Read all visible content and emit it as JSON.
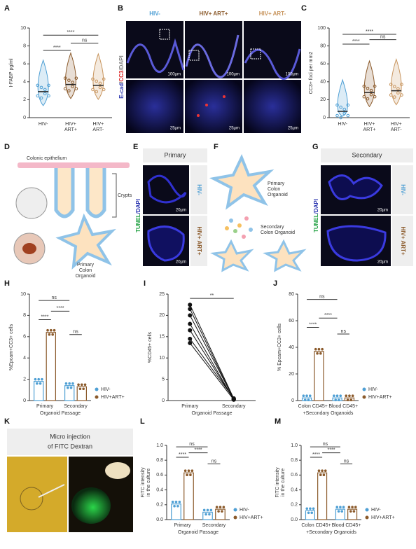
{
  "panel_letters": [
    "A",
    "B",
    "C",
    "D",
    "E",
    "F",
    "G",
    "H",
    "I",
    "J",
    "K",
    "L",
    "M"
  ],
  "A": {
    "type": "violin",
    "ylabel": "I-FABP pg/ml",
    "categories": [
      [
        "HIV-"
      ],
      [
        "HIV+",
        "ART+"
      ],
      [
        "HIV+",
        "ART-"
      ]
    ],
    "colors": [
      "#4e9fd4",
      "#8b5a2b",
      "#c8955e"
    ],
    "values": [
      2.9,
      3.7,
      3.6
    ],
    "ylim": [
      0,
      10
    ],
    "yticks": [
      0,
      2,
      4,
      6,
      8,
      10
    ],
    "significance": [
      {
        "label": "****",
        "from": 0,
        "to": 2,
        "y": 9.2
      },
      {
        "label": "****",
        "from": 0,
        "to": 1,
        "y": 7.5
      },
      {
        "label": "ns",
        "from": 1,
        "to": 2,
        "y": 8.3
      }
    ]
  },
  "B": {
    "columns": [
      "HIV-",
      "HIV+ ART+",
      "HIV+ ART-"
    ],
    "stain": [
      "E-cad",
      "/",
      "CC3",
      "/DAPI"
    ],
    "scale_top": "100µm",
    "scale_bottom": "25µm"
  },
  "C": {
    "type": "violin",
    "ylabel": "CC3+ foci per mm2",
    "categories": [
      [
        "HIV-"
      ],
      [
        "HIV+",
        "ART+"
      ],
      [
        "HIV+",
        "ART-"
      ]
    ],
    "colors": [
      "#4e9fd4",
      "#8b5a2b",
      "#c8955e"
    ],
    "values": [
      7,
      28,
      30
    ],
    "ylim": [
      0,
      100
    ],
    "yticks": [
      0,
      20,
      40,
      60,
      80,
      100
    ],
    "significance": [
      {
        "label": "****",
        "from": 0,
        "to": 2,
        "y": 93
      },
      {
        "label": "****",
        "from": 0,
        "to": 1,
        "y": 82
      },
      {
        "label": "ns",
        "from": 1,
        "to": 2,
        "y": 87
      }
    ]
  },
  "D": {
    "epithelium": "Colonic epithelium",
    "crypts": "Crypts",
    "organoid": [
      "Primary",
      "Colon",
      "Organoid"
    ]
  },
  "E": {
    "title": "Primary",
    "stain": [
      "TUNEL",
      "/DAPI"
    ],
    "rows": [
      "HIV-",
      "HIV+ ART+"
    ],
    "scale": "20µm"
  },
  "F": {
    "primary": [
      "Primary",
      "Colon",
      "Organoid"
    ],
    "secondary": [
      "Secondary",
      "Colon Organoid"
    ]
  },
  "G": {
    "title": "Secondary",
    "stain": [
      "TUNEL",
      "/DAPI"
    ],
    "rows": [
      "HIV-",
      "HIV+ ART+"
    ],
    "scale": "20µm"
  },
  "H": {
    "type": "bar",
    "ylabel": [
      "%Epcam+CC3+ cells"
    ],
    "xlabel": "Organoid Passage",
    "groups": [
      "Primary",
      "Secondary"
    ],
    "series": [
      {
        "name": "HIV-",
        "color": "#4e9fd4",
        "values": [
          1.8,
          1.4
        ]
      },
      {
        "name": "HIV+ART+",
        "color": "#8b5a2b",
        "values": [
          6.4,
          1.3
        ]
      }
    ],
    "ylim": [
      0,
      10
    ],
    "yticks": [
      0,
      2,
      4,
      6,
      8,
      10
    ],
    "significance": [
      {
        "label": "ns",
        "from": 0,
        "to": 2,
        "y": 9.4
      },
      {
        "label": "****",
        "from": 0,
        "to": 1,
        "y": 7.6
      },
      {
        "label": "****",
        "from": 1,
        "to": 2,
        "y": 8.4
      },
      {
        "label": "ns",
        "from": 2,
        "to": 3,
        "y": 6.2
      }
    ]
  },
  "I": {
    "type": "paired",
    "ylabel": [
      "%CD45+ cells"
    ],
    "xlabel": "Organoid Passage",
    "categories": [
      "Primary",
      "Secondary"
    ],
    "color": "#111",
    "pairs": [
      [
        22.5,
        0.5
      ],
      [
        21.5,
        0.3
      ],
      [
        20,
        0.4
      ],
      [
        18,
        0.2
      ],
      [
        16.5,
        0.3
      ],
      [
        14.5,
        0.5
      ],
      [
        13.5,
        0.2
      ]
    ],
    "ylim": [
      0,
      25
    ],
    "yticks": [
      0,
      5,
      10,
      15,
      20,
      25
    ],
    "significance": [
      {
        "label": "**",
        "from": 0,
        "to": 1,
        "y": 24
      }
    ]
  },
  "J": {
    "type": "bar",
    "ylabel": [
      "% Epcam+CC3+ cells"
    ],
    "xlabel": "+Secondary Organoids",
    "groups": [
      "Colon CD45+",
      "Blood CD45+"
    ],
    "series": [
      {
        "name": "HIV-",
        "color": "#4e9fd4",
        "values": [
          2,
          2
        ]
      },
      {
        "name": "HIV+ART+",
        "color": "#8b5a2b",
        "values": [
          37,
          2
        ]
      }
    ],
    "ylim": [
      0,
      80
    ],
    "yticks": [
      0,
      20,
      40,
      60,
      80
    ],
    "significance": [
      {
        "label": "ns",
        "from": 0,
        "to": 2,
        "y": 76
      },
      {
        "label": "****",
        "from": 0,
        "to": 1,
        "y": 55
      },
      {
        "label": "****",
        "from": 1,
        "to": 2,
        "y": 62
      },
      {
        "label": "ns",
        "from": 2,
        "to": 3,
        "y": 50
      }
    ]
  },
  "K": {
    "title": [
      "Micro injection",
      "of FITC Dextran"
    ]
  },
  "L": {
    "type": "bar",
    "ylabel": [
      "FITC intensity",
      "in the culture"
    ],
    "xlabel": "Organoid Passage",
    "groups": [
      "Primary",
      "Secondary"
    ],
    "series": [
      {
        "name": "HIV-",
        "color": "#4e9fd4",
        "values": [
          0.21,
          0.1
        ]
      },
      {
        "name": "HIV+ART+",
        "color": "#8b5a2b",
        "values": [
          0.63,
          0.14
        ]
      }
    ],
    "ylim": [
      0,
      1
    ],
    "yticks": [
      {
        "value": 0,
        "label": "0.0"
      },
      0.2,
      0.4,
      0.6,
      0.8,
      {
        "value": 1,
        "label": "1.0"
      }
    ],
    "significance": [
      {
        "label": "ns",
        "from": 0,
        "to": 2,
        "y": 0.98
      },
      {
        "label": "****",
        "from": 0,
        "to": 1,
        "y": 0.84
      },
      {
        "label": "****",
        "from": 1,
        "to": 2,
        "y": 0.9
      },
      {
        "label": "ns",
        "from": 2,
        "to": 3,
        "y": 0.75
      }
    ]
  },
  "M": {
    "type": "bar",
    "ylabel": [
      "FITC intensity",
      "in the culture"
    ],
    "xlabel": "+Secondary Organoids",
    "groups": [
      "Colon CD45+",
      "Blood CD45+"
    ],
    "series": [
      {
        "name": "HIV-",
        "color": "#4e9fd4",
        "values": [
          0.12,
          0.14
        ]
      },
      {
        "name": "HIV+ART+",
        "color": "#8b5a2b",
        "values": [
          0.63,
          0.14
        ]
      }
    ],
    "ylim": [
      0,
      1
    ],
    "yticks": [
      {
        "value": 0,
        "label": "0.0"
      },
      0.2,
      0.4,
      0.6,
      0.8,
      {
        "value": 1,
        "label": "1.0"
      }
    ],
    "significance": [
      {
        "label": "ns",
        "from": 0,
        "to": 2,
        "y": 0.98
      },
      {
        "label": "****",
        "from": 0,
        "to": 1,
        "y": 0.84
      },
      {
        "label": "****",
        "from": 1,
        "to": 2,
        "y": 0.9
      },
      {
        "label": "ns",
        "from": 2,
        "to": 3,
        "y": 0.75
      }
    ]
  }
}
